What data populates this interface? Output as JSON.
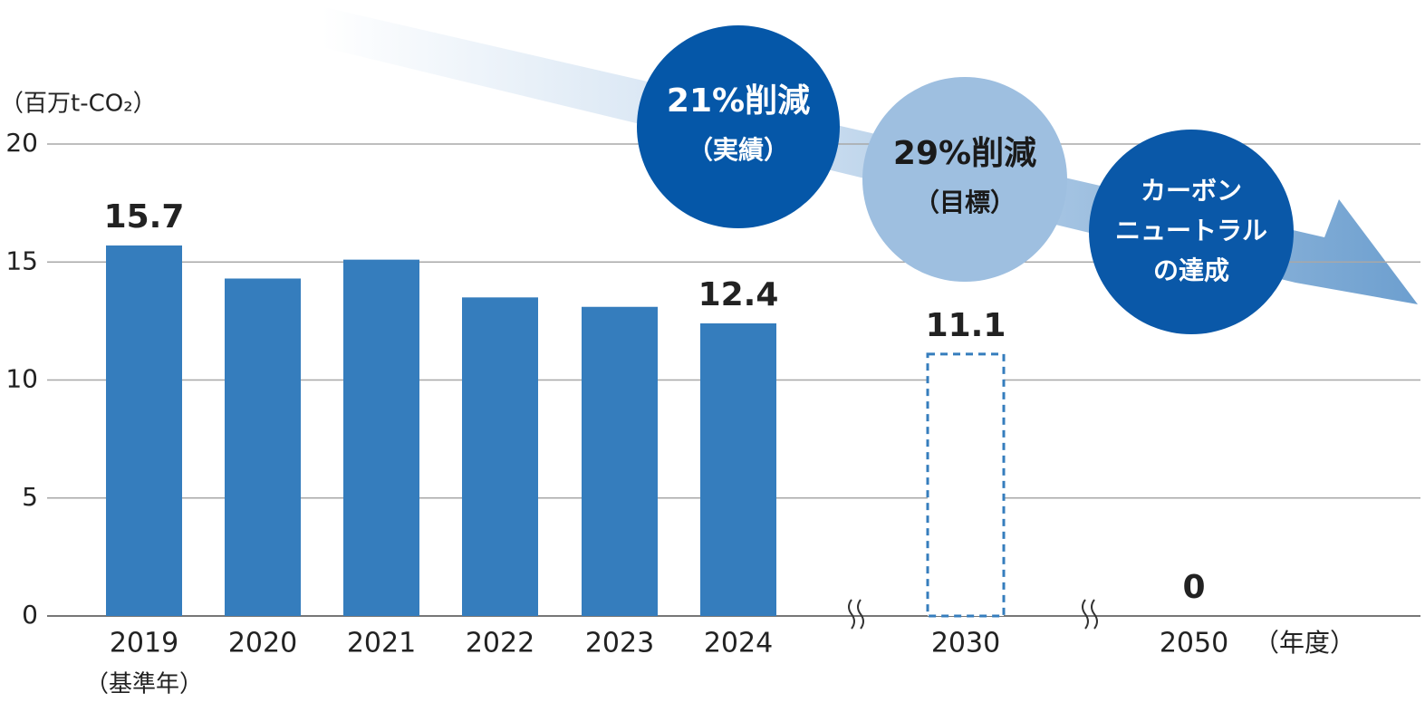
{
  "chart_data": {
    "type": "bar",
    "y_unit": "（百万t-CO₂）",
    "x_unit": "（年度）",
    "categories": [
      "2019",
      "2020",
      "2021",
      "2022",
      "2023",
      "2024",
      "2030",
      "2050"
    ],
    "category_notes": [
      "（基準年）",
      null,
      null,
      null,
      null,
      null,
      null,
      null
    ],
    "values": [
      15.7,
      14.3,
      15.1,
      13.5,
      13.1,
      12.4,
      11.1,
      0
    ],
    "value_labels": [
      "15.7",
      null,
      null,
      null,
      null,
      "12.4",
      "11.1",
      "0"
    ],
    "bar_styles": [
      "solid",
      "solid",
      "solid",
      "solid",
      "solid",
      "solid",
      "dashed",
      "solid"
    ],
    "color": "#357dbd",
    "ylim": [
      0,
      20
    ],
    "yticks": [
      0,
      5,
      10,
      15,
      20
    ],
    "grid": true,
    "annotations": [
      {
        "lines": [
          "21%削減",
          "（実績）"
        ],
        "color": "#0557a8"
      },
      {
        "lines": [
          "29%削減",
          "（目標）"
        ],
        "color": "#9ebfe0"
      },
      {
        "lines": [
          "カーボン",
          "ニュートラル",
          "の達成"
        ],
        "color": "#0a58a8"
      }
    ]
  }
}
